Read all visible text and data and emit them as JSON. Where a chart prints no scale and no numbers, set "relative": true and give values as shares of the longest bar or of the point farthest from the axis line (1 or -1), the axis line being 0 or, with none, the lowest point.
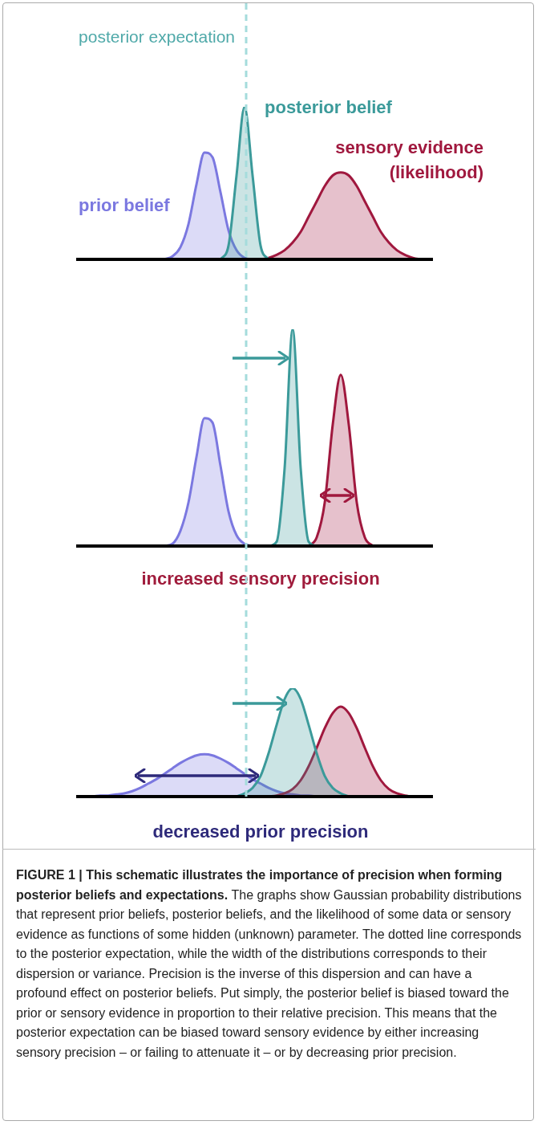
{
  "chart_data": [
    {
      "type": "area",
      "relative": true,
      "annotations": [
        "posterior expectation"
      ],
      "categories": [
        null,
        null,
        null,
        null,
        null,
        null,
        null,
        null,
        null,
        null,
        null,
        null,
        null,
        null,
        null,
        null,
        null,
        null,
        null,
        null,
        null,
        null,
        null,
        null,
        null,
        null,
        null,
        null,
        null,
        null,
        null,
        null,
        null,
        null,
        null,
        null,
        null,
        null,
        null,
        null,
        null,
        null,
        null,
        null,
        null,
        null
      ],
      "series": [
        {
          "name": "prior belief",
          "color": "#7b78e0",
          "values": [
            null,
            null,
            null,
            null,
            null,
            null,
            null,
            null,
            null,
            null,
            null,
            0,
            0.02,
            0.08,
            0.23,
            0.49,
            0.7,
            0.67,
            0.44,
            0.19,
            0.06,
            0.01,
            0,
            null,
            null,
            null,
            null,
            null,
            null,
            null,
            null,
            null,
            null,
            null,
            null,
            null,
            null,
            null,
            null,
            null,
            null,
            null,
            null,
            null,
            null,
            null
          ]
        },
        {
          "name": "sensory evidence (likelihood)",
          "color": "#a0183e",
          "values": [
            null,
            null,
            null,
            null,
            null,
            null,
            null,
            null,
            null,
            null,
            null,
            null,
            null,
            null,
            null,
            null,
            null,
            null,
            null,
            null,
            null,
            null,
            null,
            0,
            0.01,
            0.03,
            0.06,
            0.11,
            0.18,
            0.28,
            0.38,
            0.48,
            0.55,
            0.57,
            0.55,
            0.48,
            0.38,
            0.28,
            0.18,
            0.11,
            0.06,
            0.03,
            0.01,
            0,
            null,
            null
          ]
        },
        {
          "name": "posterior belief",
          "color": "#3b9a9a",
          "values": [
            null,
            null,
            null,
            null,
            null,
            null,
            null,
            null,
            null,
            null,
            null,
            null,
            null,
            null,
            null,
            null,
            null,
            null,
            0,
            0.09,
            0.55,
            1,
            0.55,
            0.09,
            0,
            null,
            null,
            null,
            null,
            null,
            null,
            null,
            null,
            null,
            null,
            null,
            null,
            null,
            null,
            null,
            null,
            null,
            null,
            null,
            null,
            null
          ]
        }
      ],
      "legend": false
    },
    {
      "type": "area",
      "relative": true,
      "xlabel": "increased sensory precision",
      "categories": [
        null,
        null,
        null,
        null,
        null,
        null,
        null,
        null,
        null,
        null,
        null,
        null,
        null,
        null,
        null,
        null,
        null,
        null,
        null,
        null,
        null,
        null,
        null,
        null,
        null,
        null,
        null,
        null,
        null,
        null,
        null,
        null,
        null,
        null,
        null,
        null,
        null,
        null,
        null,
        null,
        null,
        null,
        null,
        null,
        null,
        null
      ],
      "series": [
        {
          "color": "#7b78e0",
          "values": [
            null,
            null,
            null,
            null,
            null,
            null,
            null,
            null,
            null,
            null,
            null,
            0,
            0.01,
            0.07,
            0.2,
            0.41,
            0.59,
            0.57,
            0.37,
            0.16,
            0.05,
            0.01,
            0,
            null,
            null,
            null,
            null,
            null,
            null,
            null,
            null,
            null,
            null,
            null,
            null,
            null,
            null,
            null,
            null,
            null,
            null,
            null,
            null,
            null,
            null,
            null
          ]
        },
        {
          "color": "#a0183e",
          "values": [
            null,
            null,
            null,
            null,
            null,
            null,
            null,
            null,
            null,
            null,
            null,
            null,
            null,
            null,
            null,
            null,
            null,
            null,
            null,
            null,
            null,
            null,
            null,
            null,
            null,
            null,
            null,
            null,
            null,
            0,
            0.04,
            0.2,
            0.56,
            0.79,
            0.56,
            0.2,
            0.04,
            0,
            null,
            null,
            null,
            null,
            null,
            null,
            null,
            null
          ]
        },
        {
          "color": "#3b9a9a",
          "values": [
            null,
            null,
            null,
            null,
            null,
            null,
            null,
            null,
            null,
            null,
            null,
            null,
            null,
            null,
            null,
            null,
            null,
            null,
            null,
            null,
            null,
            null,
            null,
            null,
            0,
            0.02,
            0.36,
            1,
            0.36,
            0.02,
            0,
            null,
            null,
            null,
            null,
            null,
            null,
            null,
            null,
            null,
            null,
            null,
            null,
            null,
            null,
            null
          ]
        }
      ],
      "legend": false
    },
    {
      "type": "area",
      "relative": true,
      "xlabel": "decreased prior precision",
      "categories": [
        null,
        null,
        null,
        null,
        null,
        null,
        null,
        null,
        null,
        null,
        null,
        null,
        null,
        null,
        null,
        null,
        null,
        null,
        null,
        null,
        null,
        null,
        null,
        null,
        null,
        null,
        null,
        null,
        null,
        null,
        null,
        null,
        null,
        null,
        null,
        null,
        null,
        null,
        null,
        null,
        null,
        null,
        null,
        null,
        null,
        null
      ],
      "series": [
        {
          "color": "#7b78e0",
          "values": [
            0,
            0,
            0,
            0.01,
            0.01,
            0.02,
            0.03,
            0.05,
            0.08,
            0.12,
            0.16,
            0.21,
            0.26,
            0.31,
            0.35,
            0.38,
            0.39,
            0.38,
            0.35,
            0.31,
            0.26,
            0.21,
            0.16,
            0.12,
            0.08,
            0.05,
            0.03,
            0.02,
            0.01,
            0.01,
            0,
            null,
            null,
            null,
            null,
            null,
            null,
            null,
            null,
            null,
            null,
            null,
            null,
            null,
            null,
            null
          ]
        },
        {
          "color": "#a0183e",
          "values": [
            null,
            null,
            null,
            null,
            null,
            null,
            null,
            null,
            null,
            null,
            null,
            null,
            null,
            null,
            null,
            null,
            null,
            null,
            null,
            null,
            null,
            null,
            null,
            null,
            0,
            0.01,
            0.03,
            0.07,
            0.15,
            0.28,
            0.45,
            0.63,
            0.77,
            0.83,
            0.77,
            0.63,
            0.45,
            0.28,
            0.15,
            0.07,
            0.03,
            0.01,
            0,
            null,
            null,
            null
          ]
        },
        {
          "color": "#3b9a9a",
          "values": [
            null,
            null,
            null,
            null,
            null,
            null,
            null,
            null,
            null,
            null,
            null,
            null,
            null,
            null,
            null,
            null,
            null,
            null,
            null,
            null,
            0,
            0.03,
            0.08,
            0.19,
            0.4,
            0.66,
            0.9,
            1,
            0.9,
            0.66,
            0.4,
            0.19,
            0.08,
            0.03,
            0,
            null,
            null,
            null,
            null,
            null,
            null,
            null,
            null,
            null,
            null,
            null
          ]
        }
      ],
      "annotations": [
        "FIGURE 1 | This schematic illustrates the importance of precision when forming posterior beliefs and expectations.",
        "The graphs show Gaussian probability distributions that represent prior beliefs, posterior beliefs, and the likelihood of some data or sensory evidence as functions of some hidden (unknown) parameter. The dotted line corresponds to the posterior expectation, while the width of the distributions corresponds to their dispersion or variance. Precision is the inverse of this dispersion and can have a profound effect on posterior beliefs. Put simply, the posterior belief is biased toward the prior or sensory evidence in proportion to their relative precision. This means that the posterior expectation can be biased toward sensory evidence by either increasing sensory precision – or failing to attenuate it – or by decreasing prior precision."
      ]
    }
  ]
}
